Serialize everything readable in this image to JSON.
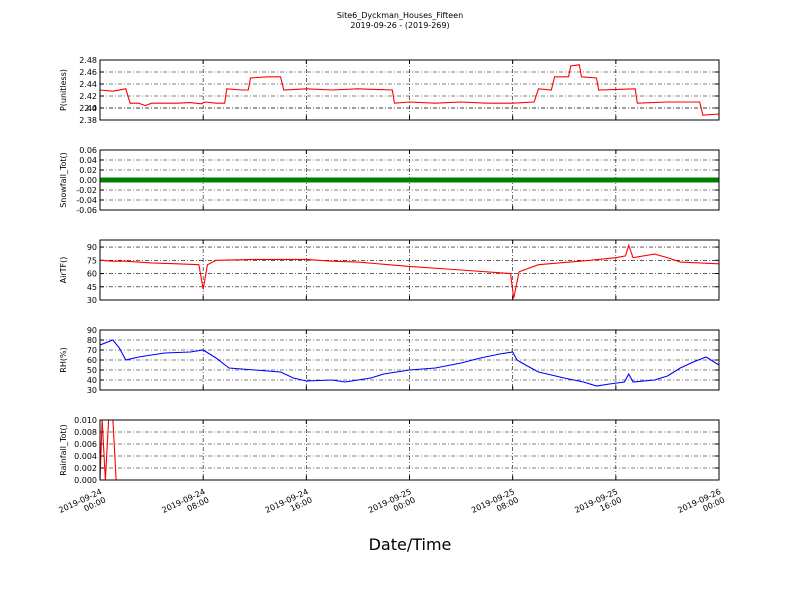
{
  "title": "Site6_Dyckman_Houses_Fifteen",
  "subtitle": "2019-09-26 - (2019-269)",
  "chart_data": [
    {
      "type": "line",
      "ylabel": "P(unitless)",
      "ylim": [
        2.38,
        2.48
      ],
      "yticks": [
        2.38,
        2.4,
        {
          "value": 2.4,
          "label": "2.40"
        },
        2.42,
        2.44,
        2.46,
        2.48
      ],
      "xlim": [
        "2019-09-24 00:00",
        "2019-09-26 00:00"
      ],
      "xticks": [
        "2019-09-24 00:00",
        "2019-09-24 08:00",
        "2019-09-24 16:00",
        "2019-09-25 00:00",
        "2019-09-25 08:00",
        "2019-09-25 16:00",
        "2019-09-26 00:00"
      ],
      "grid": true,
      "series": [
        {
          "name": "P",
          "color": "#ff0000",
          "x": [
            "2019-09-24 00:00",
            "2019-09-24 01:00",
            "2019-09-24 02:00",
            "2019-09-24 02:20",
            "2019-09-24 03:00",
            "2019-09-24 03:30",
            "2019-09-24 04:00",
            "2019-09-24 06:00",
            "2019-09-24 07:00",
            "2019-09-24 07:50",
            "2019-09-24 08:10",
            "2019-09-24 09:00",
            "2019-09-24 09:40",
            "2019-09-24 09:50",
            "2019-09-24 11:00",
            "2019-09-24 11:30",
            "2019-09-24 11:40",
            "2019-09-24 13:00",
            "2019-09-24 14:00",
            "2019-09-24 14:15",
            "2019-09-24 16:00",
            "2019-09-24 18:00",
            "2019-09-24 20:00",
            "2019-09-24 22:40",
            "2019-09-24 22:50",
            "2019-09-25 00:00",
            "2019-09-25 02:00",
            "2019-09-25 04:00",
            "2019-09-25 06:00",
            "2019-09-25 08:00",
            "2019-09-25 09:40",
            "2019-09-25 10:00",
            "2019-09-25 11:00",
            "2019-09-25 11:15",
            "2019-09-25 12:20",
            "2019-09-25 12:30",
            "2019-09-25 13:10",
            "2019-09-25 13:20",
            "2019-09-25 14:30",
            "2019-09-25 14:40",
            "2019-09-25 17:30",
            "2019-09-25 17:40",
            "2019-09-25 20:00",
            "2019-09-25 22:30",
            "2019-09-25 22:45",
            "2019-09-26 00:00"
          ],
          "values": [
            2.43,
            2.428,
            2.432,
            2.408,
            2.408,
            2.404,
            2.408,
            2.408,
            2.409,
            2.407,
            2.41,
            2.408,
            2.408,
            2.432,
            2.43,
            2.43,
            2.45,
            2.452,
            2.452,
            2.43,
            2.432,
            2.43,
            2.432,
            2.43,
            2.408,
            2.41,
            2.408,
            2.41,
            2.408,
            2.408,
            2.41,
            2.432,
            2.43,
            2.452,
            2.452,
            2.47,
            2.472,
            2.452,
            2.45,
            2.43,
            2.432,
            2.408,
            2.41,
            2.41,
            2.388,
            2.39
          ]
        }
      ]
    },
    {
      "type": "line",
      "ylabel": "Snowfall_Tot()",
      "ylim": [
        -0.06,
        0.06
      ],
      "yticks": [
        -0.06,
        -0.04,
        -0.02,
        {
          "value": 0,
          "label": "0.00"
        },
        0.02,
        0.04,
        0.06
      ],
      "xlim": [
        "2019-09-24 00:00",
        "2019-09-26 00:00"
      ],
      "xticks": [
        "2019-09-24 00:00",
        "2019-09-24 08:00",
        "2019-09-24 16:00",
        "2019-09-25 00:00",
        "2019-09-25 08:00",
        "2019-09-25 16:00",
        "2019-09-26 00:00"
      ],
      "grid": true,
      "series": [
        {
          "name": "Snowfall_Tot",
          "color": "#008000",
          "x": [
            "2019-09-24 00:00",
            "2019-09-24 04:00",
            "2019-09-24 08:00",
            "2019-09-24 12:00",
            "2019-09-24 16:00",
            "2019-09-24 20:00",
            "2019-09-25 00:00",
            "2019-09-25 04:00",
            "2019-09-25 08:00",
            "2019-09-25 12:00",
            "2019-09-25 16:00",
            "2019-09-25 20:00",
            "2019-09-26 00:00"
          ],
          "values": [
            0,
            0,
            0,
            0,
            0,
            0,
            0,
            0,
            0,
            0,
            0,
            0,
            0
          ]
        }
      ]
    },
    {
      "type": "line",
      "ylabel": "AirTF()",
      "ylim": [
        30,
        98
      ],
      "yticks": [
        30,
        45,
        60,
        75,
        90
      ],
      "xlim": [
        "2019-09-24 00:00",
        "2019-09-26 00:00"
      ],
      "xticks": [
        "2019-09-24 00:00",
        "2019-09-24 08:00",
        "2019-09-24 16:00",
        "2019-09-25 00:00",
        "2019-09-25 08:00",
        "2019-09-25 16:00",
        "2019-09-26 00:00"
      ],
      "grid": true,
      "series": [
        {
          "name": "AirTF",
          "color": "#ff0000",
          "x": [
            "2019-09-24 00:00",
            "2019-09-24 01:00",
            "2019-09-24 02:00",
            "2019-09-24 04:00",
            "2019-09-24 06:00",
            "2019-09-24 07:40",
            "2019-09-24 08:00",
            "2019-09-24 08:20",
            "2019-09-24 09:00",
            "2019-09-24 12:00",
            "2019-09-24 16:00",
            "2019-09-24 18:00",
            "2019-09-24 20:00",
            "2019-09-25 00:00",
            "2019-09-25 04:00",
            "2019-09-25 07:50",
            "2019-09-25 08:05",
            "2019-09-25 08:30",
            "2019-09-25 10:00",
            "2019-09-25 14:00",
            "2019-09-25 16:00",
            "2019-09-25 16:45",
            "2019-09-25 17:00",
            "2019-09-25 17:20",
            "2019-09-25 19:00",
            "2019-09-25 20:00",
            "2019-09-25 21:00",
            "2019-09-26 00:00"
          ],
          "values": [
            75,
            74,
            74,
            72,
            71,
            70,
            42,
            70,
            75,
            76,
            76,
            74,
            73,
            68,
            64,
            60,
            32,
            62,
            70,
            75,
            78,
            80,
            92,
            78,
            82,
            78,
            73,
            71
          ]
        }
      ]
    },
    {
      "type": "line",
      "ylabel": "RH(%)",
      "ylim": [
        30,
        90
      ],
      "yticks": [
        30,
        40,
        50,
        60,
        70,
        80,
        90
      ],
      "xlim": [
        "2019-09-24 00:00",
        "2019-09-26 00:00"
      ],
      "xticks": [
        "2019-09-24 00:00",
        "2019-09-24 08:00",
        "2019-09-24 16:00",
        "2019-09-25 00:00",
        "2019-09-25 08:00",
        "2019-09-25 16:00",
        "2019-09-26 00:00"
      ],
      "grid": true,
      "series": [
        {
          "name": "RH",
          "color": "#0000ff",
          "x": [
            "2019-09-24 00:00",
            "2019-09-24 01:00",
            "2019-09-24 01:30",
            "2019-09-24 02:00",
            "2019-09-24 03:00",
            "2019-09-24 05:00",
            "2019-09-24 07:00",
            "2019-09-24 08:00",
            "2019-09-24 09:00",
            "2019-09-24 10:00",
            "2019-09-24 12:00",
            "2019-09-24 14:00",
            "2019-09-24 15:00",
            "2019-09-24 16:00",
            "2019-09-24 18:00",
            "2019-09-24 19:00",
            "2019-09-24 21:00",
            "2019-09-24 22:00",
            "2019-09-25 00:00",
            "2019-09-25 02:00",
            "2019-09-25 04:00",
            "2019-09-25 05:30",
            "2019-09-25 07:00",
            "2019-09-25 08:00",
            "2019-09-25 08:20",
            "2019-09-25 09:00",
            "2019-09-25 10:00",
            "2019-09-25 12:00",
            "2019-09-25 13:30",
            "2019-09-25 14:30",
            "2019-09-25 15:30",
            "2019-09-25 16:40",
            "2019-09-25 17:00",
            "2019-09-25 17:20",
            "2019-09-25 19:00",
            "2019-09-25 20:00",
            "2019-09-25 21:00",
            "2019-09-25 22:00",
            "2019-09-25 23:00",
            "2019-09-26 00:00"
          ],
          "values": [
            75,
            80,
            72,
            60,
            63,
            67,
            68,
            70,
            62,
            52,
            50,
            48,
            42,
            39,
            40,
            38,
            42,
            46,
            50,
            52,
            57,
            62,
            66,
            68,
            60,
            55,
            48,
            42,
            38,
            34,
            36,
            38,
            46,
            38,
            40,
            44,
            52,
            58,
            63,
            55
          ]
        }
      ]
    },
    {
      "type": "line",
      "ylabel": "Rainfall_Tot()",
      "xlabel": "Date/Time",
      "ylim": [
        0,
        0.01
      ],
      "yticks": [
        {
          "value": 0,
          "label": "0.000"
        },
        0.002,
        0.004,
        0.006,
        0.008,
        {
          "value": 0.01,
          "label": "0.010"
        }
      ],
      "xlim": [
        "2019-09-24 00:00",
        "2019-09-26 00:00"
      ],
      "xticks": [
        {
          "value": "2019-09-24 00:00",
          "label": "2019-09-24\n00:00"
        },
        {
          "value": "2019-09-24 08:00",
          "label": "2019-09-24\n08:00"
        },
        {
          "value": "2019-09-24 16:00",
          "label": "2019-09-24\n16:00"
        },
        {
          "value": "2019-09-25 00:00",
          "label": "2019-09-25\n00:00"
        },
        {
          "value": "2019-09-25 08:00",
          "label": "2019-09-25\n08:00"
        },
        {
          "value": "2019-09-25 16:00",
          "label": "2019-09-25\n16:00"
        },
        {
          "value": "2019-09-26 00:00",
          "label": "2019-09-26\n00:00"
        }
      ],
      "grid": true,
      "series": [
        {
          "name": "Rainfall_Tot",
          "color": "#ff0000",
          "x": [
            "2019-09-24 00:00",
            "2019-09-24 00:10",
            "2019-09-24 00:25",
            "2019-09-24 00:40",
            "2019-09-24 01:00",
            "2019-09-24 01:15",
            "2019-09-26 00:00"
          ],
          "values": [
            0,
            0.01,
            0,
            0.01,
            0.01,
            0,
            0
          ]
        }
      ]
    }
  ]
}
